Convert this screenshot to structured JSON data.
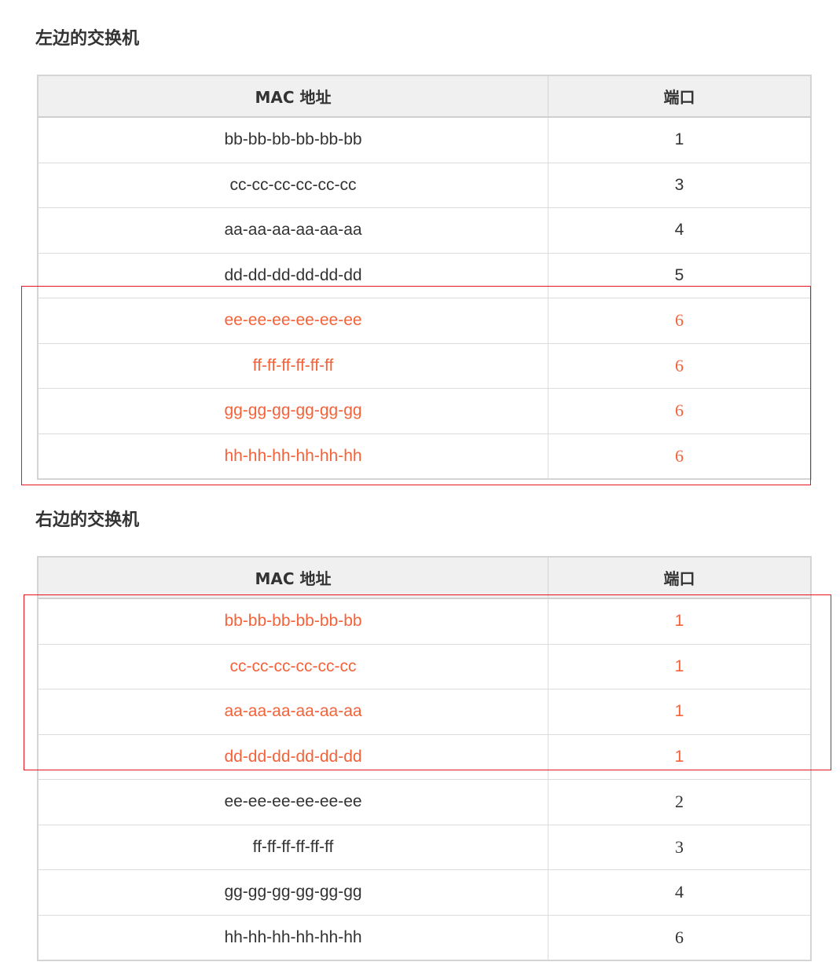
{
  "left_switch": {
    "title": "左边的交换机",
    "headers": [
      "MAC 地址",
      "端口"
    ],
    "rows": [
      {
        "mac": "bb-bb-bb-bb-bb-bb",
        "port": "1",
        "highlighted": false
      },
      {
        "mac": "cc-cc-cc-cc-cc-cc",
        "port": "3",
        "highlighted": false
      },
      {
        "mac": "aa-aa-aa-aa-aa-aa",
        "port": "4",
        "highlighted": false
      },
      {
        "mac": "dd-dd-dd-dd-dd-dd",
        "port": "5",
        "highlighted": false
      },
      {
        "mac": "ee-ee-ee-ee-ee-ee",
        "port": "6",
        "highlighted": true
      },
      {
        "mac": "ff-ff-ff-ff-ff-ff",
        "port": "6",
        "highlighted": true
      },
      {
        "mac": "gg-gg-gg-gg-gg-gg",
        "port": "6",
        "highlighted": true
      },
      {
        "mac": "hh-hh-hh-hh-hh-hh",
        "port": "6",
        "highlighted": true
      }
    ]
  },
  "right_switch": {
    "title": "右边的交换机",
    "headers": [
      "MAC 地址",
      "端口"
    ],
    "rows": [
      {
        "mac": "bb-bb-bb-bb-bb-bb",
        "port": "1",
        "highlighted": true
      },
      {
        "mac": "cc-cc-cc-cc-cc-cc",
        "port": "1",
        "highlighted": true
      },
      {
        "mac": "aa-aa-aa-aa-aa-aa",
        "port": "1",
        "highlighted": true
      },
      {
        "mac": "dd-dd-dd-dd-dd-dd",
        "port": "1",
        "highlighted": true
      },
      {
        "mac": "ee-ee-ee-ee-ee-ee",
        "port": "2",
        "highlighted": false
      },
      {
        "mac": "ff-ff-ff-ff-ff-ff",
        "port": "3",
        "highlighted": false
      },
      {
        "mac": "gg-gg-gg-gg-gg-gg",
        "port": "4",
        "highlighted": false
      },
      {
        "mac": "hh-hh-hh-hh-hh-hh",
        "port": "6",
        "highlighted": false
      }
    ]
  },
  "colors": {
    "highlight_text": "#f4623a",
    "highlight_box": "#e8141e"
  }
}
